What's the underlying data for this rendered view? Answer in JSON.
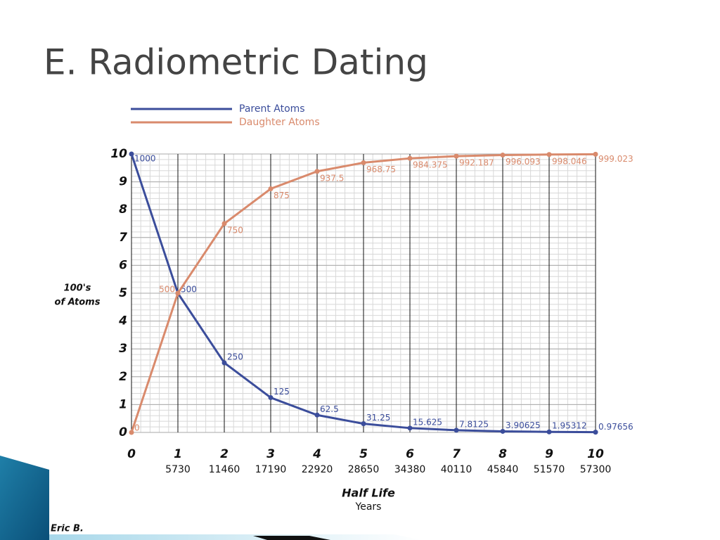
{
  "chart_data": {
    "type": "line",
    "title": "E.  Radiometric Dating",
    "ylabel": [
      "100's",
      "of Atoms"
    ],
    "xlabel": "Half Life",
    "xsublabel": "Years",
    "author": "Eric B.",
    "x": [
      0,
      1,
      2,
      3,
      4,
      5,
      6,
      7,
      8,
      9,
      10
    ],
    "series": [
      {
        "name": "Parent Atoms",
        "color": "#3b4d9b",
        "values": [
          10,
          5,
          2.5,
          1.25,
          0.625,
          0.3125,
          0.15625,
          0.078125,
          0.0390625,
          0.0195312,
          0.0097656
        ],
        "value_labels": [
          "1000",
          "500",
          "250",
          "125",
          "62.5",
          "31.25",
          "15.625",
          "7.8125",
          "3.90625",
          "1.95312",
          "0.97656"
        ]
      },
      {
        "name": "Daughter Atoms",
        "color": "#d98a6c",
        "values": [
          0,
          5,
          7.5,
          8.75,
          9.375,
          9.6875,
          9.84375,
          9.92187,
          9.96093,
          9.98046,
          9.99023
        ],
        "value_labels": [
          "0",
          "500",
          "750",
          "875",
          "937.5",
          "968.75",
          "984.375",
          "992.187",
          "996.093",
          "998.046",
          "999.023"
        ]
      }
    ],
    "xlim": [
      0,
      10
    ],
    "xticks": [
      0,
      1,
      2,
      3,
      4,
      5,
      6,
      7,
      8,
      9,
      10
    ],
    "year_ticks": [
      {
        "value": 1,
        "label": "5730"
      },
      {
        "value": 2,
        "label": "11460"
      },
      {
        "value": 3,
        "label": "17190"
      },
      {
        "value": 4,
        "label": "22920"
      },
      {
        "value": 5,
        "label": "28650"
      },
      {
        "value": 6,
        "label": "34380"
      },
      {
        "value": 7,
        "label": "40110"
      },
      {
        "value": 8,
        "label": "45840"
      },
      {
        "value": 9,
        "label": "51570"
      },
      {
        "value": 10,
        "label": "57300"
      }
    ],
    "ylim": [
      0,
      10
    ],
    "yticks": [
      0,
      1,
      2,
      3,
      4,
      5,
      6,
      7,
      8,
      9,
      10
    ],
    "grid": true
  }
}
